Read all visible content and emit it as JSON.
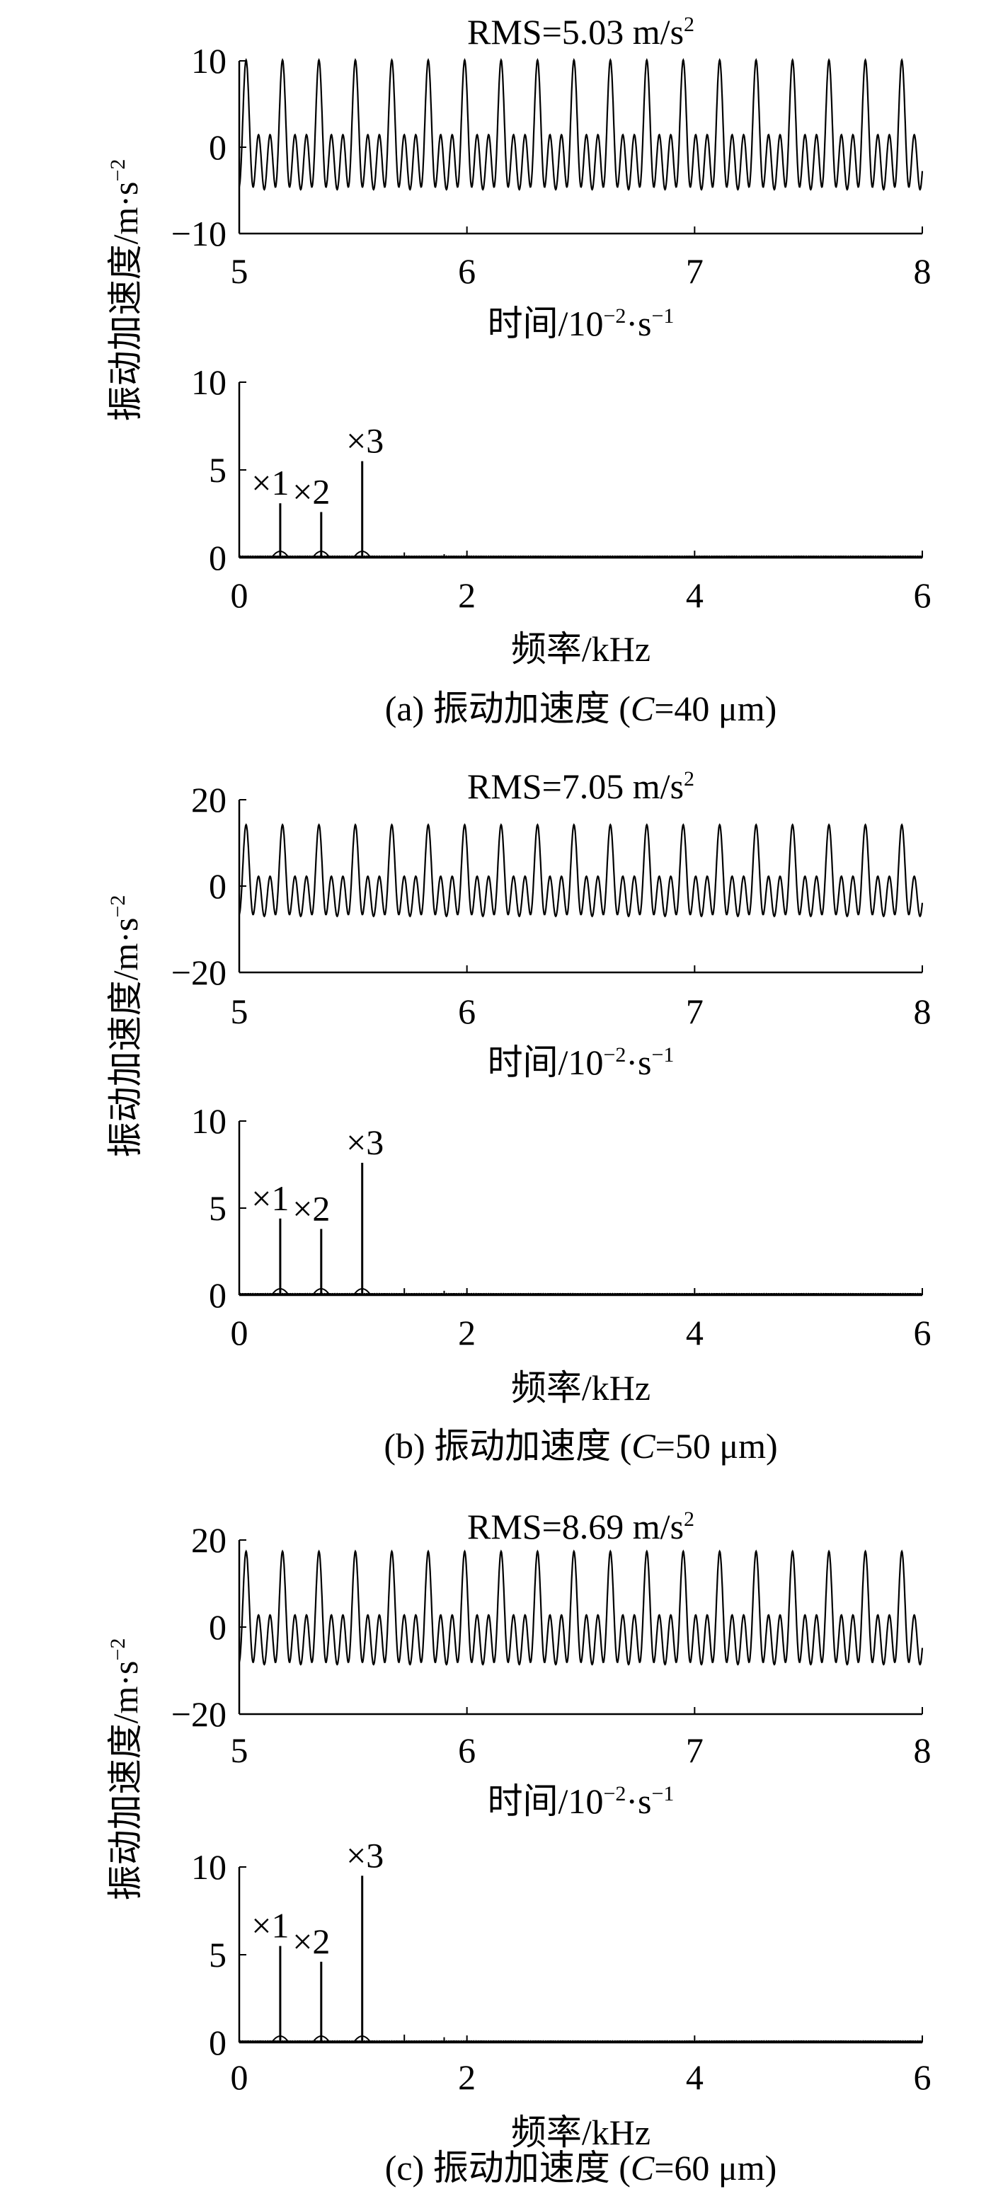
{
  "chart_data": [
    {
      "panel_id": "a",
      "caption": "(a) 振动加速度 (C=40 μm)",
      "caption_parts": [
        "(a) 振动加速度 (",
        "C",
        "=40 μm)"
      ],
      "time_plot": {
        "type": "line",
        "rms_label": "RMS=5.03 m/s",
        "rms_sup": "2",
        "xlabel": "时间/10",
        "xlabel_sup1": "−2",
        "xlabel_mid": "·s",
        "xlabel_sup2": "−1",
        "xlim": [
          5,
          8
        ],
        "ylim": [
          -10,
          10
        ],
        "xticks": [
          "5",
          "6",
          "7",
          "8"
        ],
        "yticks": [
          "10",
          "0",
          "−10"
        ],
        "ytick_values": [
          10,
          0,
          -10
        ],
        "signal": {
          "fundamental_period": 0.16,
          "phase": 5.03,
          "components": [
            {
              "harmonic": 1,
              "amplitude": 3.2
            },
            {
              "harmonic": 2,
              "amplitude": 2.6
            },
            {
              "harmonic": 3,
              "amplitude": 4.3
            }
          ],
          "x_start": 5,
          "x_end": 8
        }
      },
      "spectrum_plot": {
        "type": "line",
        "xlabel": "频率/kHz",
        "xlim": [
          0,
          6
        ],
        "ylim": [
          0,
          10
        ],
        "xticks": [
          "0",
          "2",
          "4",
          "6"
        ],
        "yticks": [
          "10",
          "5",
          "0"
        ],
        "ytick_values": [
          10,
          5,
          0
        ],
        "peaks": [
          {
            "label": "×1",
            "freq": 0.36,
            "value": 3.1
          },
          {
            "label": "×2",
            "freq": 0.72,
            "value": 2.6
          },
          {
            "label": "×3",
            "freq": 1.08,
            "value": 5.5
          }
        ],
        "minor_peaks": [
          {
            "freq": 1.45,
            "value": 0.3
          },
          {
            "freq": 1.8,
            "value": 0.2
          }
        ]
      }
    },
    {
      "panel_id": "b",
      "caption": "(b) 振动加速度 (C=50 μm)",
      "caption_parts": [
        "(b) 振动加速度 (",
        "C",
        "=50 μm)"
      ],
      "time_plot": {
        "type": "line",
        "rms_label": "RMS=7.05 m/s",
        "rms_sup": "2",
        "xlabel": "时间/10",
        "xlabel_sup1": "−2",
        "xlabel_mid": "·s",
        "xlabel_sup2": "−1",
        "xlim": [
          5,
          8
        ],
        "ylim": [
          -20,
          20
        ],
        "xticks": [
          "5",
          "6",
          "7",
          "8"
        ],
        "yticks": [
          "20",
          "0",
          "−20"
        ],
        "ytick_values": [
          20,
          0,
          -20
        ],
        "signal": {
          "fundamental_period": 0.16,
          "phase": 5.03,
          "components": [
            {
              "harmonic": 1,
              "amplitude": 4.4
            },
            {
              "harmonic": 2,
              "amplitude": 3.6
            },
            {
              "harmonic": 3,
              "amplitude": 6.2
            }
          ],
          "x_start": 5,
          "x_end": 8
        }
      },
      "spectrum_plot": {
        "type": "line",
        "xlabel": "频率/kHz",
        "xlim": [
          0,
          6
        ],
        "ylim": [
          0,
          10
        ],
        "xticks": [
          "0",
          "2",
          "4",
          "6"
        ],
        "yticks": [
          "10",
          "5",
          "0"
        ],
        "ytick_values": [
          10,
          5,
          0
        ],
        "peaks": [
          {
            "label": "×1",
            "freq": 0.36,
            "value": 4.4
          },
          {
            "label": "×2",
            "freq": 0.72,
            "value": 3.8
          },
          {
            "label": "×3",
            "freq": 1.08,
            "value": 7.6
          }
        ],
        "minor_peaks": [
          {
            "freq": 1.45,
            "value": 0.4
          },
          {
            "freq": 1.8,
            "value": 0.25
          }
        ]
      }
    },
    {
      "panel_id": "c",
      "caption": "(c) 振动加速度 (C=60 μm)",
      "caption_parts": [
        "(c) 振动加速度 (",
        "C",
        "=60 μm)"
      ],
      "time_plot": {
        "type": "line",
        "rms_label": "RMS=8.69 m/s",
        "rms_sup": "2",
        "xlabel": "时间/10",
        "xlabel_sup1": "−2",
        "xlabel_mid": "·s",
        "xlabel_sup2": "−1",
        "xlim": [
          5,
          8
        ],
        "ylim": [
          -20,
          20
        ],
        "xticks": [
          "5",
          "6",
          "7",
          "8"
        ],
        "yticks": [
          "20",
          "0",
          "−20"
        ],
        "ytick_values": [
          20,
          0,
          -20
        ],
        "signal": {
          "fundamental_period": 0.16,
          "phase": 5.03,
          "components": [
            {
              "harmonic": 1,
              "amplitude": 5.4
            },
            {
              "harmonic": 2,
              "amplitude": 4.4
            },
            {
              "harmonic": 3,
              "amplitude": 7.6
            }
          ],
          "x_start": 5,
          "x_end": 8
        }
      },
      "spectrum_plot": {
        "type": "line",
        "xlabel": "频率/kHz",
        "xlim": [
          0,
          6
        ],
        "ylim": [
          0,
          10
        ],
        "xticks": [
          "0",
          "2",
          "4",
          "6"
        ],
        "yticks": [
          "10",
          "5",
          "0"
        ],
        "ytick_values": [
          10,
          5,
          0
        ],
        "peaks": [
          {
            "label": "×1",
            "freq": 0.36,
            "value": 5.5
          },
          {
            "label": "×2",
            "freq": 0.72,
            "value": 4.6
          },
          {
            "label": "×3",
            "freq": 1.08,
            "value": 9.5
          }
        ],
        "minor_peaks": [
          {
            "freq": 1.45,
            "value": 0.45
          },
          {
            "freq": 1.8,
            "value": 0.3
          }
        ]
      }
    }
  ],
  "shared_ylabel": "振动加速度/m·s",
  "shared_ylabel_sup": "−2"
}
